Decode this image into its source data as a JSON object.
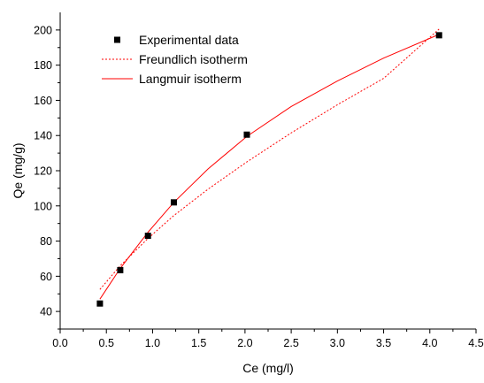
{
  "colors": {
    "fit_line": "#ff0000",
    "marker": "#000000",
    "axis": "#000000",
    "background": "#ffffff"
  },
  "chart_data": {
    "type": "scatter",
    "title": "",
    "xlabel": "Ce (mg/l)",
    "ylabel": "Qe (mg/g)",
    "xlim": [
      0.0,
      4.5
    ],
    "ylim": [
      30,
      210
    ],
    "x_ticks": [
      "0.0",
      "0.5",
      "1.0",
      "1.5",
      "2.0",
      "2.5",
      "3.0",
      "3.5",
      "4.0",
      "4.5"
    ],
    "y_ticks": [
      "40",
      "60",
      "80",
      "100",
      "120",
      "140",
      "160",
      "180",
      "200"
    ],
    "grid": false,
    "legend_position": "top-left",
    "series": [
      {
        "name": "Experimental data",
        "kind": "markers",
        "marker": "square",
        "color": "#000000",
        "points": [
          {
            "x": 0.43,
            "y": 44.5
          },
          {
            "x": 0.65,
            "y": 63.5
          },
          {
            "x": 0.95,
            "y": 83.0
          },
          {
            "x": 1.23,
            "y": 102.0
          },
          {
            "x": 2.02,
            "y": 140.5
          },
          {
            "x": 4.1,
            "y": 197.0
          }
        ]
      },
      {
        "name": "Freundlich isotherm",
        "kind": "line",
        "dash": "dotted",
        "color": "#ff0000",
        "points": [
          {
            "x": 0.43,
            "y": 52.5
          },
          {
            "x": 0.65,
            "y": 66.0
          },
          {
            "x": 0.95,
            "y": 81.5
          },
          {
            "x": 1.23,
            "y": 94.5
          },
          {
            "x": 1.6,
            "y": 109.5
          },
          {
            "x": 2.02,
            "y": 125.0
          },
          {
            "x": 2.5,
            "y": 141.5
          },
          {
            "x": 3.0,
            "y": 157.5
          },
          {
            "x": 3.5,
            "y": 172.5
          },
          {
            "x": 4.1,
            "y": 200.5
          }
        ]
      },
      {
        "name": "Langmuir isotherm",
        "kind": "line",
        "dash": "solid",
        "color": "#ff0000",
        "points": [
          {
            "x": 0.43,
            "y": 47.0
          },
          {
            "x": 0.65,
            "y": 64.5
          },
          {
            "x": 0.95,
            "y": 85.0
          },
          {
            "x": 1.23,
            "y": 102.0
          },
          {
            "x": 1.6,
            "y": 121.0
          },
          {
            "x": 2.02,
            "y": 139.5
          },
          {
            "x": 2.5,
            "y": 156.5
          },
          {
            "x": 3.0,
            "y": 171.0
          },
          {
            "x": 3.5,
            "y": 184.0
          },
          {
            "x": 4.1,
            "y": 197.5
          }
        ]
      }
    ]
  }
}
